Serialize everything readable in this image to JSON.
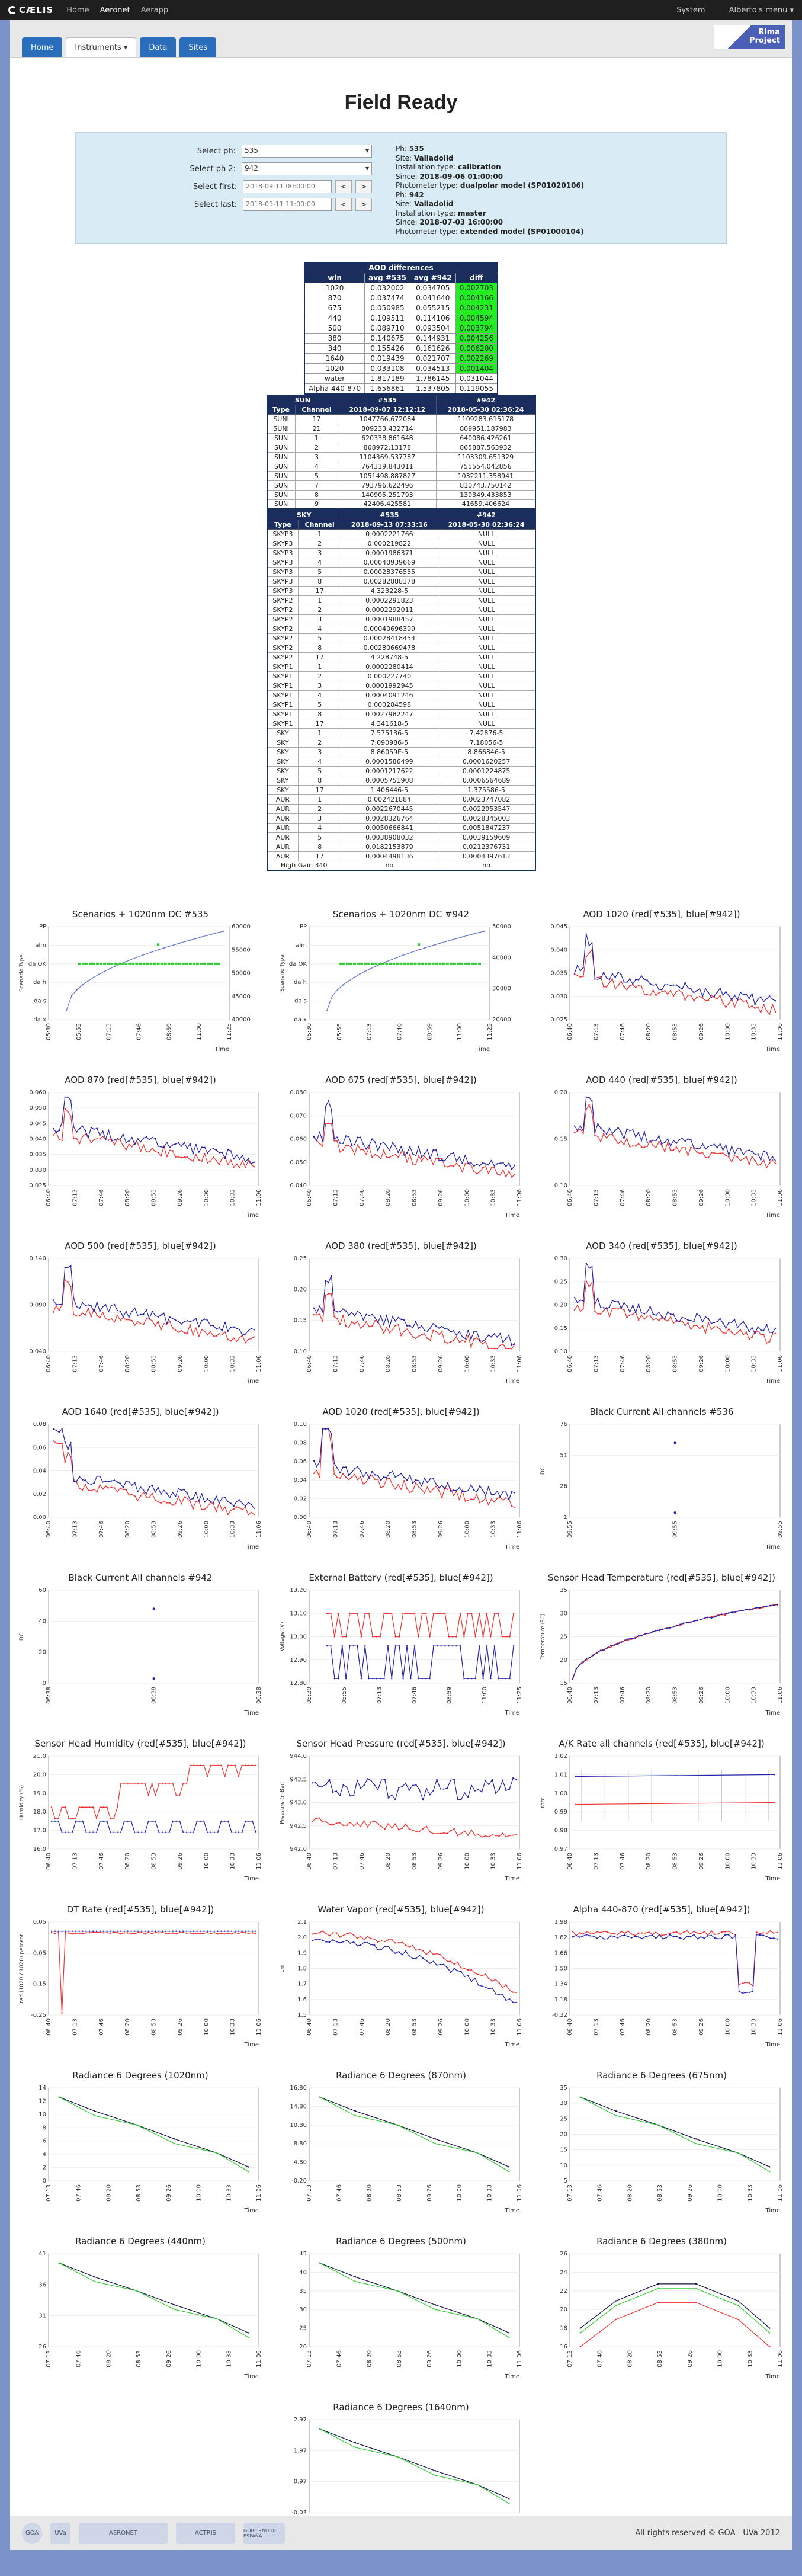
{
  "topbar": {
    "brand": "CÆLIS",
    "nav": [
      "Home",
      "Aeronet",
      "Aerapp"
    ],
    "active": 1,
    "system": "System",
    "user": "Alberto's menu ▾"
  },
  "tabs": [
    "Home",
    "Instruments ▾",
    "Data",
    "Sites"
  ],
  "rima": {
    "line1": "Rima",
    "line2": "Project"
  },
  "title": "Field Ready",
  "form": {
    "ph1_label": "Select ph:",
    "ph1": "535",
    "ph2_label": "Select ph 2:",
    "ph2": "942",
    "first_label": "Select first:",
    "first": "2018-09-11 00:00:00",
    "last_label": "Select last:",
    "last": "2018-09-11 11:00:00",
    "prev": "<",
    "next": ">"
  },
  "info": [
    {
      "k": "Ph: ",
      "v": "535"
    },
    {
      "k": "Site: ",
      "v": "Valladolid"
    },
    {
      "k": "Installation type: ",
      "v": "calibration"
    },
    {
      "k": "Since: ",
      "v": "2018-09-06 01:00:00"
    },
    {
      "k": "Photometer type: ",
      "v": "dualpolar model (SP01020106)"
    },
    {
      "k": "Ph: ",
      "v": "942"
    },
    {
      "k": "Site: ",
      "v": "Valladolid"
    },
    {
      "k": "Installation type: ",
      "v": "master"
    },
    {
      "k": "Since: ",
      "v": "2018-07-03 16:00:00"
    },
    {
      "k": "Photometer type: ",
      "v": "extended model (SP01000104)"
    }
  ],
  "aod": {
    "title": "AOD differences",
    "headers": [
      "wln",
      "avg #535",
      "avg #942",
      "diff"
    ],
    "rows": [
      [
        "1020",
        "0.032002",
        "0.034705",
        "0.002703",
        1
      ],
      [
        "870",
        "0.037474",
        "0.041640",
        "0.004166",
        1
      ],
      [
        "675",
        "0.050985",
        "0.055215",
        "0.004231",
        1
      ],
      [
        "440",
        "0.109511",
        "0.114106",
        "0.004594",
        1
      ],
      [
        "500",
        "0.089710",
        "0.093504",
        "0.003794",
        1
      ],
      [
        "380",
        "0.140675",
        "0.144931",
        "0.004256",
        1
      ],
      [
        "340",
        "0.155426",
        "0.161626",
        "0.006200",
        1
      ],
      [
        "1640",
        "0.019439",
        "0.021707",
        "0.002269",
        1
      ],
      [
        "1020",
        "0.033108",
        "0.034513",
        "0.001404",
        1
      ],
      [
        "water",
        "1.817189",
        "1.786145",
        "0.031044",
        0
      ],
      [
        "Alpha 440-870",
        "1.656861",
        "1.537805",
        "0.119055",
        0
      ]
    ]
  },
  "sun": {
    "title": "SUN",
    "cols": [
      "Type",
      "Channel",
      "#535",
      "#942"
    ],
    "sub": [
      "",
      "",
      "2018-09-07 12:12:12",
      "2018-05-30 02:36:24"
    ],
    "rows": [
      [
        "SUNI",
        "17",
        "1047766.672084",
        "1109283.615178"
      ],
      [
        "SUNI",
        "21",
        "809233.432714",
        "809951.187983"
      ],
      [
        "SUN",
        "1",
        "620338.861648",
        "640086.426261"
      ],
      [
        "SUN",
        "2",
        "868972.13178",
        "865887.563932"
      ],
      [
        "SUN",
        "3",
        "1104369.537787",
        "1103309.651329"
      ],
      [
        "SUN",
        "4",
        "764319.843011",
        "755554.042856"
      ],
      [
        "SUN",
        "5",
        "1051498.887827",
        "1032211.358941"
      ],
      [
        "SUN",
        "7",
        "793796.622496",
        "810743.750142"
      ],
      [
        "SUN",
        "8",
        "140905.251793",
        "139349.433853"
      ],
      [
        "SUN",
        "9",
        "42406.425581",
        "41659.406624"
      ]
    ]
  },
  "sky": {
    "title": "SKY",
    "cols": [
      "Type",
      "Channel",
      "#535",
      "#942"
    ],
    "sub": [
      "",
      "",
      "2018-09-13 07:33:16",
      "2018-05-30 02:36:24"
    ],
    "rows": [
      [
        "SKYP3",
        "1",
        "0.0002221766",
        "NULL"
      ],
      [
        "SKYP3",
        "2",
        "0.000219822",
        "NULL"
      ],
      [
        "SKYP3",
        "3",
        "0.0001986371",
        "NULL"
      ],
      [
        "SKYP3",
        "4",
        "0.00040939669",
        "NULL"
      ],
      [
        "SKYP3",
        "5",
        "0.00028376555",
        "NULL"
      ],
      [
        "SKYP3",
        "8",
        "0.00282888378",
        "NULL"
      ],
      [
        "SKYP3",
        "17",
        "4.323228-5",
        "NULL"
      ],
      [
        "SKYP2",
        "1",
        "0.0002291823",
        "NULL"
      ],
      [
        "SKYP2",
        "2",
        "0.0002292011",
        "NULL"
      ],
      [
        "SKYP2",
        "3",
        "0.0001988457",
        "NULL"
      ],
      [
        "SKYP2",
        "4",
        "0.00040696399",
        "NULL"
      ],
      [
        "SKYP2",
        "5",
        "0.00028418454",
        "NULL"
      ],
      [
        "SKYP2",
        "8",
        "0.00280669478",
        "NULL"
      ],
      [
        "SKYP2",
        "17",
        "4.228748-5",
        "NULL"
      ],
      [
        "SKYP1",
        "1",
        "0.0002280414",
        "NULL"
      ],
      [
        "SKYP1",
        "2",
        "0.000227740",
        "NULL"
      ],
      [
        "SKYP1",
        "3",
        "0.0001992945",
        "NULL"
      ],
      [
        "SKYP1",
        "4",
        "0.0004091246",
        "NULL"
      ],
      [
        "SKYP1",
        "5",
        "0.000284598",
        "NULL"
      ],
      [
        "SKYP1",
        "8",
        "0.0027982247",
        "NULL"
      ],
      [
        "SKYP1",
        "17",
        "4.341618-5",
        "NULL"
      ],
      [
        "SKY",
        "1",
        "7.575136-5",
        "7.42876-5"
      ],
      [
        "SKY",
        "2",
        "7.090986-5",
        "7.18056-5"
      ],
      [
        "SKY",
        "3",
        "8.86059E-5",
        "8.866846-5"
      ],
      [
        "SKY",
        "4",
        "0.0001586499",
        "0.0001620257"
      ],
      [
        "SKY",
        "5",
        "0.0001217622",
        "0.0001224875"
      ],
      [
        "SKY",
        "8",
        "0.0005751908",
        "0.0006564689"
      ],
      [
        "SKY",
        "17",
        "1.406446-5",
        "1.375586-5"
      ],
      [
        "AUR",
        "1",
        "0.002421884",
        "0.0023747082"
      ],
      [
        "AUR",
        "2",
        "0.0022670445",
        "0.0022953547"
      ],
      [
        "AUR",
        "3",
        "0.0028326764",
        "0.0028345003"
      ],
      [
        "AUR",
        "4",
        "0.0050666841",
        "0.0051847237"
      ],
      [
        "AUR",
        "5",
        "0.0038908032",
        "0.0039159609"
      ],
      [
        "AUR",
        "8",
        "0.0182153879",
        "0.0212376731"
      ],
      [
        "AUR",
        "17",
        "0.0004498136",
        "0.0004397613"
      ]
    ],
    "footer": [
      "High Gain 340",
      "no",
      "no"
    ]
  },
  "charts": [
    {
      "title": "Scenarios + 1020nm DC #535",
      "kind": "scen",
      "ylabel": "Scenario Type",
      "cats": [
        "PP",
        "alm",
        "da OK",
        "da h",
        "da s",
        "da x"
      ],
      "yr": [
        "60000",
        "55000",
        "50000",
        "45000",
        "40000"
      ],
      "xt": [
        "05:30",
        "05:55",
        "07:13",
        "07:46",
        "08:59",
        "11:00",
        "11:25"
      ]
    },
    {
      "title": "Scenarios + 1020nm DC #942",
      "kind": "scen",
      "ylabel": "Scenario Type",
      "cats": [
        "PP",
        "alm",
        "da OK",
        "da h",
        "da s",
        "da x"
      ],
      "yr": [
        "50000",
        "40000",
        "30000",
        "20000"
      ],
      "xt": [
        "05:30",
        "05:55",
        "07:13",
        "07:46",
        "08:59",
        "11:00",
        "11:25"
      ]
    },
    {
      "title": "AOD 1020 (red[#535], blue[#942])",
      "kind": "line",
      "yt": [
        "0.045",
        "0.040",
        "0.035",
        "0.030",
        "0.025"
      ],
      "xt": [
        "06:40",
        "07:13",
        "07:46",
        "08:20",
        "08:53",
        "09:26",
        "10:00",
        "10:33",
        "11:06"
      ]
    },
    {
      "title": "AOD 870 (red[#535], blue[#942])",
      "kind": "line",
      "yt": [
        "0.060",
        "0.050",
        "0.045",
        "0.040",
        "0.035",
        "0.030",
        "0.025"
      ],
      "xt": [
        "06:40",
        "07:13",
        "07:46",
        "08:20",
        "08:53",
        "09:26",
        "10:00",
        "10:33",
        "11:06"
      ]
    },
    {
      "title": "AOD 675 (red[#535], blue[#942])",
      "kind": "line",
      "yt": [
        "0.080",
        "0.070",
        "0.060",
        "0.050",
        "0.040"
      ],
      "xt": [
        "06:40",
        "07:13",
        "07:46",
        "08:20",
        "08:53",
        "09:26",
        "10:00",
        "10:33",
        "11:06"
      ]
    },
    {
      "title": "AOD 440 (red[#535], blue[#942])",
      "kind": "line",
      "yt": [
        "0.20",
        "0.15",
        "0.10"
      ],
      "xt": [
        "06:40",
        "07:13",
        "07:46",
        "08:20",
        "08:53",
        "09:26",
        "10:00",
        "10:33",
        "11:06"
      ]
    },
    {
      "title": "AOD 500 (red[#535], blue[#942])",
      "kind": "line",
      "yt": [
        "0.140",
        "0.090",
        "0.040"
      ],
      "xt": [
        "06:40",
        "07:13",
        "07:46",
        "08:20",
        "08:53",
        "09:26",
        "10:00",
        "10:33",
        "11:06"
      ]
    },
    {
      "title": "AOD 380 (red[#535], blue[#942])",
      "kind": "line",
      "yt": [
        "0.25",
        "0.20",
        "0.15",
        "0.10"
      ],
      "xt": [
        "06:40",
        "07:13",
        "07:46",
        "08:20",
        "08:53",
        "09:26",
        "10:00",
        "10:33",
        "11:06"
      ]
    },
    {
      "title": "AOD 340 (red[#535], blue[#942])",
      "kind": "line",
      "yt": [
        "0.30",
        "0.25",
        "0.20",
        "0.15",
        "0.10"
      ],
      "xt": [
        "06:40",
        "07:13",
        "07:46",
        "08:20",
        "08:53",
        "09:26",
        "10:00",
        "10:33",
        "11:06"
      ]
    },
    {
      "title": "AOD 1640 (red[#535], blue[#942])",
      "kind": "line",
      "yt": [
        "0.08",
        "0.06",
        "0.04",
        "0.02",
        "0.00"
      ],
      "xt": [
        "06:40",
        "07:13",
        "07:46",
        "08:20",
        "08:53",
        "09:26",
        "10:00",
        "10:33",
        "11:06"
      ]
    },
    {
      "title": "AOD 1020 (red[#535], blue[#942])",
      "kind": "line",
      "yt": [
        "0.10",
        "0.08",
        "0.06",
        "0.04",
        "0.02",
        "0.00"
      ],
      "xt": [
        "06:40",
        "07:13",
        "07:46",
        "08:20",
        "08:53",
        "09:26",
        "10:00",
        "10:33",
        "11:06"
      ]
    },
    {
      "title": "Black Current All channels #536",
      "kind": "dots",
      "ylabel": "DC",
      "yt": [
        "76",
        "51",
        "26",
        "1"
      ],
      "xt": [
        "09:55",
        "09:55",
        "09:55"
      ]
    },
    {
      "title": "Black Current All channels #942",
      "kind": "dots",
      "ylabel": "DC",
      "yt": [
        "60",
        "40",
        "20",
        "0"
      ],
      "xt": [
        "06:38",
        "06:38",
        "06:38"
      ]
    },
    {
      "title": "External Battery (red[#535], blue[#942])",
      "kind": "batt",
      "ylabel": "Voltage (V)",
      "yt": [
        "13.20",
        "13.10",
        "13.00",
        "12.90",
        "12.80"
      ],
      "xt": [
        "05:30",
        "05:55",
        "07:13",
        "07:46",
        "08:59",
        "11:00",
        "11:25"
      ]
    },
    {
      "title": "Sensor Head Temperature (red[#535], blue[#942])",
      "kind": "temp",
      "ylabel": "Temperature (ºC)",
      "yt": [
        "35",
        "30",
        "25",
        "20",
        "15"
      ],
      "xt": [
        "06:40",
        "07:13",
        "07:46",
        "08:20",
        "08:53",
        "09:26",
        "10:00",
        "10:33",
        "11:06"
      ]
    },
    {
      "title": "Sensor Head Humidity (red[#535], blue[#942])",
      "kind": "hum",
      "ylabel": "Humidity (%)",
      "yt": [
        "21.0",
        "20.0",
        "19.0",
        "18.0",
        "17.0",
        "16.0"
      ],
      "xt": [
        "06:40",
        "07:13",
        "07:46",
        "08:20",
        "08:53",
        "09:26",
        "10:00",
        "10:33",
        "11:06"
      ]
    },
    {
      "title": "Sensor Head Pressure (red[#535], blue[#942])",
      "kind": "pres",
      "ylabel": "Pressure (mBar)",
      "yt": [
        "944.0",
        "943.5",
        "943.0",
        "942.5",
        "942.0"
      ],
      "xt": [
        "06:40",
        "07:13",
        "07:46",
        "08:20",
        "08:53",
        "09:26",
        "10:00",
        "10:33",
        "11:06"
      ]
    },
    {
      "title": "A/K Rate all channels (red[#535], blue[#942])",
      "kind": "ak",
      "ylabel": "rate",
      "yt": [
        "1.02",
        "1.01",
        "1.00",
        "0.99",
        "0.98",
        "0.97"
      ],
      "xt": [
        "06:40",
        "07:13",
        "07:46",
        "08:20",
        "08:53",
        "09:26",
        "10:00",
        "10:33",
        "11:06"
      ]
    },
    {
      "title": "DT Rate (red[#535], blue[#942])",
      "kind": "dt",
      "ylabel": "rad (1020 / 1020) percent",
      "yt": [
        "0.05",
        "-0.05",
        "-0.15",
        "-0.25"
      ],
      "xt": [
        "06:40",
        "07:13",
        "07:46",
        "08:20",
        "08:53",
        "09:26",
        "10:00",
        "10:33",
        "11:06"
      ]
    },
    {
      "title": "Water Vapor (red[#535], blue[#942])",
      "kind": "wv",
      "ylabel": "cm",
      "yt": [
        "2.1",
        "2.0",
        "1.9",
        "1.8",
        "1.7",
        "1.6",
        "1.5"
      ],
      "xt": [
        "06:40",
        "07:13",
        "07:46",
        "08:20",
        "08:53",
        "09:26",
        "10:00",
        "10:33",
        "11:06"
      ]
    },
    {
      "title": "Alpha 440-870 (red[#535], blue[#942])",
      "kind": "alpha",
      "yt": [
        "1.98",
        "1.82",
        "1.66",
        "1.50",
        "1.34",
        "1.18",
        "-0.32"
      ],
      "xt": [
        "06:40",
        "07:13",
        "07:46",
        "08:20",
        "08:53",
        "09:26",
        "10:00",
        "10:33",
        "11:06"
      ]
    },
    {
      "title": "Radiance 6 Degrees (1020nm)",
      "kind": "rad",
      "yt": [
        "14",
        "12",
        "10",
        "8",
        "6",
        "4",
        "2",
        "0"
      ],
      "xt": [
        "07:13",
        "07:46",
        "08:20",
        "08:53",
        "09:26",
        "10:00",
        "10:33",
        "11:06"
      ]
    },
    {
      "title": "Radiance 6 Degrees (870nm)",
      "kind": "rad",
      "yt": [
        "16.80",
        "14.80",
        "10.80",
        "8.80",
        "4.80",
        "-0.20"
      ],
      "xt": [
        "07:13",
        "07:46",
        "08:20",
        "08:53",
        "09:26",
        "10:00",
        "10:33",
        "11:06"
      ]
    },
    {
      "title": "Radiance 6 Degrees (675nm)",
      "kind": "rad",
      "yt": [
        "35",
        "30",
        "25",
        "20",
        "15",
        "10",
        "5"
      ],
      "xt": [
        "07:13",
        "07:46",
        "08:20",
        "08:53",
        "09:26",
        "10:00",
        "10:33",
        "11:06"
      ]
    },
    {
      "title": "Radiance 6 Degrees (440nm)",
      "kind": "rad",
      "yt": [
        "41",
        "36",
        "31",
        "26"
      ],
      "xt": [
        "07:13",
        "07:46",
        "08:20",
        "08:53",
        "09:26",
        "10:00",
        "10:33",
        "11:06"
      ]
    },
    {
      "title": "Radiance 6 Degrees (500nm)",
      "kind": "rad",
      "yt": [
        "45",
        "40",
        "35",
        "30",
        "25",
        "20"
      ],
      "xt": [
        "07:13",
        "07:46",
        "08:20",
        "08:53",
        "09:26",
        "10:00",
        "10:33",
        "11:06"
      ]
    },
    {
      "title": "Radiance 6 Degrees (380nm)",
      "kind": "radup",
      "yt": [
        "26",
        "24",
        "22",
        "20",
        "18",
        "16"
      ],
      "xt": [
        "07:13",
        "07:46",
        "08:20",
        "08:53",
        "09:26",
        "10:00",
        "10:33",
        "11:06"
      ]
    },
    {
      "title": "Radiance 6 Degrees (1640nm)",
      "kind": "rad",
      "yt": [
        "2.97",
        "1.97",
        "0.97",
        "-0.03"
      ],
      "xt": [
        "07:13",
        "07:46",
        "08:20",
        "08:53",
        "09:26",
        "10:00",
        "10:33",
        "11:06"
      ]
    }
  ],
  "time_label": "Time",
  "footer_logos": [
    "GOA",
    "UVa",
    "AERONET",
    "ACTRIS",
    "GOBIERNO DE ESPAÑA"
  ],
  "copyright": "All rights reserved © GOA - UVa 2012",
  "colors": {
    "red": "#e33",
    "blue": "#22a",
    "green": "#3c3",
    "nav": "#1a2e5e"
  }
}
